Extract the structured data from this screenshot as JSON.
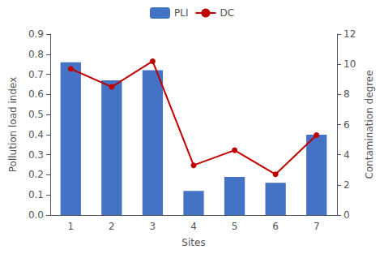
{
  "chart_data": {
    "type": "bar",
    "xlabel": "Sites",
    "ylabel": "Pollution load index",
    "y2label": "Contamination degree",
    "categories": [
      "1",
      "2",
      "3",
      "4",
      "5",
      "6",
      "7"
    ],
    "series": [
      {
        "name": "PLI",
        "type": "bar",
        "color": "#4472C4",
        "values": [
          0.76,
          0.67,
          0.72,
          0.12,
          0.19,
          0.16,
          0.4
        ]
      },
      {
        "name": "DC",
        "type": "line",
        "color": "#C00000",
        "marker": "circle",
        "axis": "y2",
        "values": [
          9.7,
          8.5,
          10.2,
          3.3,
          4.3,
          2.7,
          5.3
        ]
      }
    ],
    "ylim": [
      0,
      0.9
    ],
    "yticks": [
      {
        "value": 0,
        "label": "0.0"
      },
      0.1,
      0.2,
      0.3,
      0.4,
      0.5,
      0.6,
      0.7,
      0.8,
      0.9
    ],
    "y2lim": [
      0,
      12
    ],
    "y2ticks": [
      0,
      2,
      4,
      6,
      8,
      10,
      12
    ],
    "grid": false,
    "legend": "top"
  }
}
